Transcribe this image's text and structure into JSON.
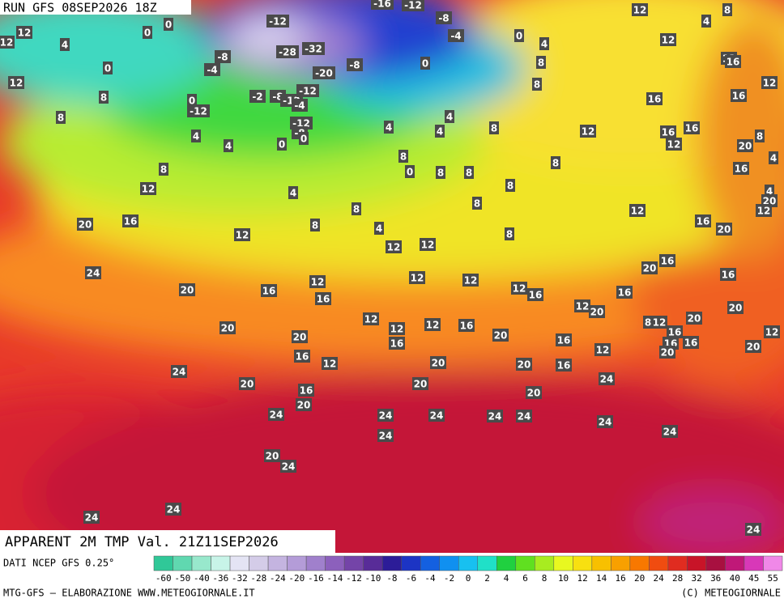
{
  "header": {
    "run": "RUN GFS 08SEP2026 18Z",
    "field": "APPARENT 2M TMP Val. 21Z11SEP2026"
  },
  "map_labels": [
    12,
    4,
    0,
    0,
    12,
    12,
    0,
    8,
    8,
    -12,
    -16,
    -12,
    -8,
    -4,
    0,
    4,
    8,
    8,
    12,
    4,
    8,
    12,
    12,
    16,
    12,
    -8,
    -4,
    -28,
    -32,
    -20,
    -8,
    0,
    0,
    -12,
    -2,
    -8,
    -12,
    -12,
    -4,
    -12,
    -8,
    0,
    0,
    4,
    4,
    8,
    12,
    20,
    16,
    4,
    4,
    4,
    8,
    8,
    0,
    8,
    8,
    8,
    8,
    8,
    12,
    16,
    16,
    16,
    12,
    16,
    8,
    20,
    16,
    4,
    4,
    20,
    12,
    12,
    16,
    20,
    16,
    20,
    16,
    4,
    8,
    8,
    4,
    12,
    12,
    8,
    12,
    24,
    20,
    16,
    12,
    16,
    12,
    12,
    12,
    16,
    12,
    20,
    16,
    20,
    20,
    8,
    12,
    16,
    12,
    16,
    16,
    20,
    20,
    20,
    20,
    12,
    12,
    12,
    16,
    20,
    16,
    12,
    16,
    12,
    16,
    20,
    20,
    16,
    24,
    20,
    16,
    20,
    20,
    20,
    24,
    24,
    24,
    24,
    24,
    24,
    24,
    24,
    24,
    20,
    24,
    24,
    24,
    24
  ],
  "colorbar": {
    "title": "DATI NCEP GFS 0.25°",
    "ticks": [
      -60,
      -50,
      -40,
      -36,
      -32,
      -28,
      -24,
      -20,
      -16,
      -14,
      -12,
      -10,
      -8,
      -6,
      -4,
      -2,
      0,
      2,
      4,
      6,
      8,
      10,
      12,
      14,
      16,
      20,
      24,
      28,
      32,
      36,
      40,
      45,
      55
    ],
    "colors": [
      "#30c898",
      "#60d8b0",
      "#98e8cc",
      "#c8f4e8",
      "#e4e4f4",
      "#d4cce8",
      "#c4b4e0",
      "#b49cd8",
      "#a080cc",
      "#8c60bc",
      "#7444a8",
      "#582c98",
      "#2c1c98",
      "#1c34c4",
      "#1460e0",
      "#1090f0",
      "#18c0f0",
      "#20e0c8",
      "#20d040",
      "#60e020",
      "#a8ec20",
      "#e8f820",
      "#f8e010",
      "#f8c000",
      "#f8a000",
      "#f87800",
      "#f04c10",
      "#e02c20",
      "#c81428",
      "#a81040",
      "#c01878",
      "#d838b8",
      "#f088e8"
    ]
  },
  "footer": {
    "left": "MTG-GFS — ELABORAZIONE WWW.METEOGIORNALE.IT",
    "right": "(C) METEOGIORNALE"
  }
}
